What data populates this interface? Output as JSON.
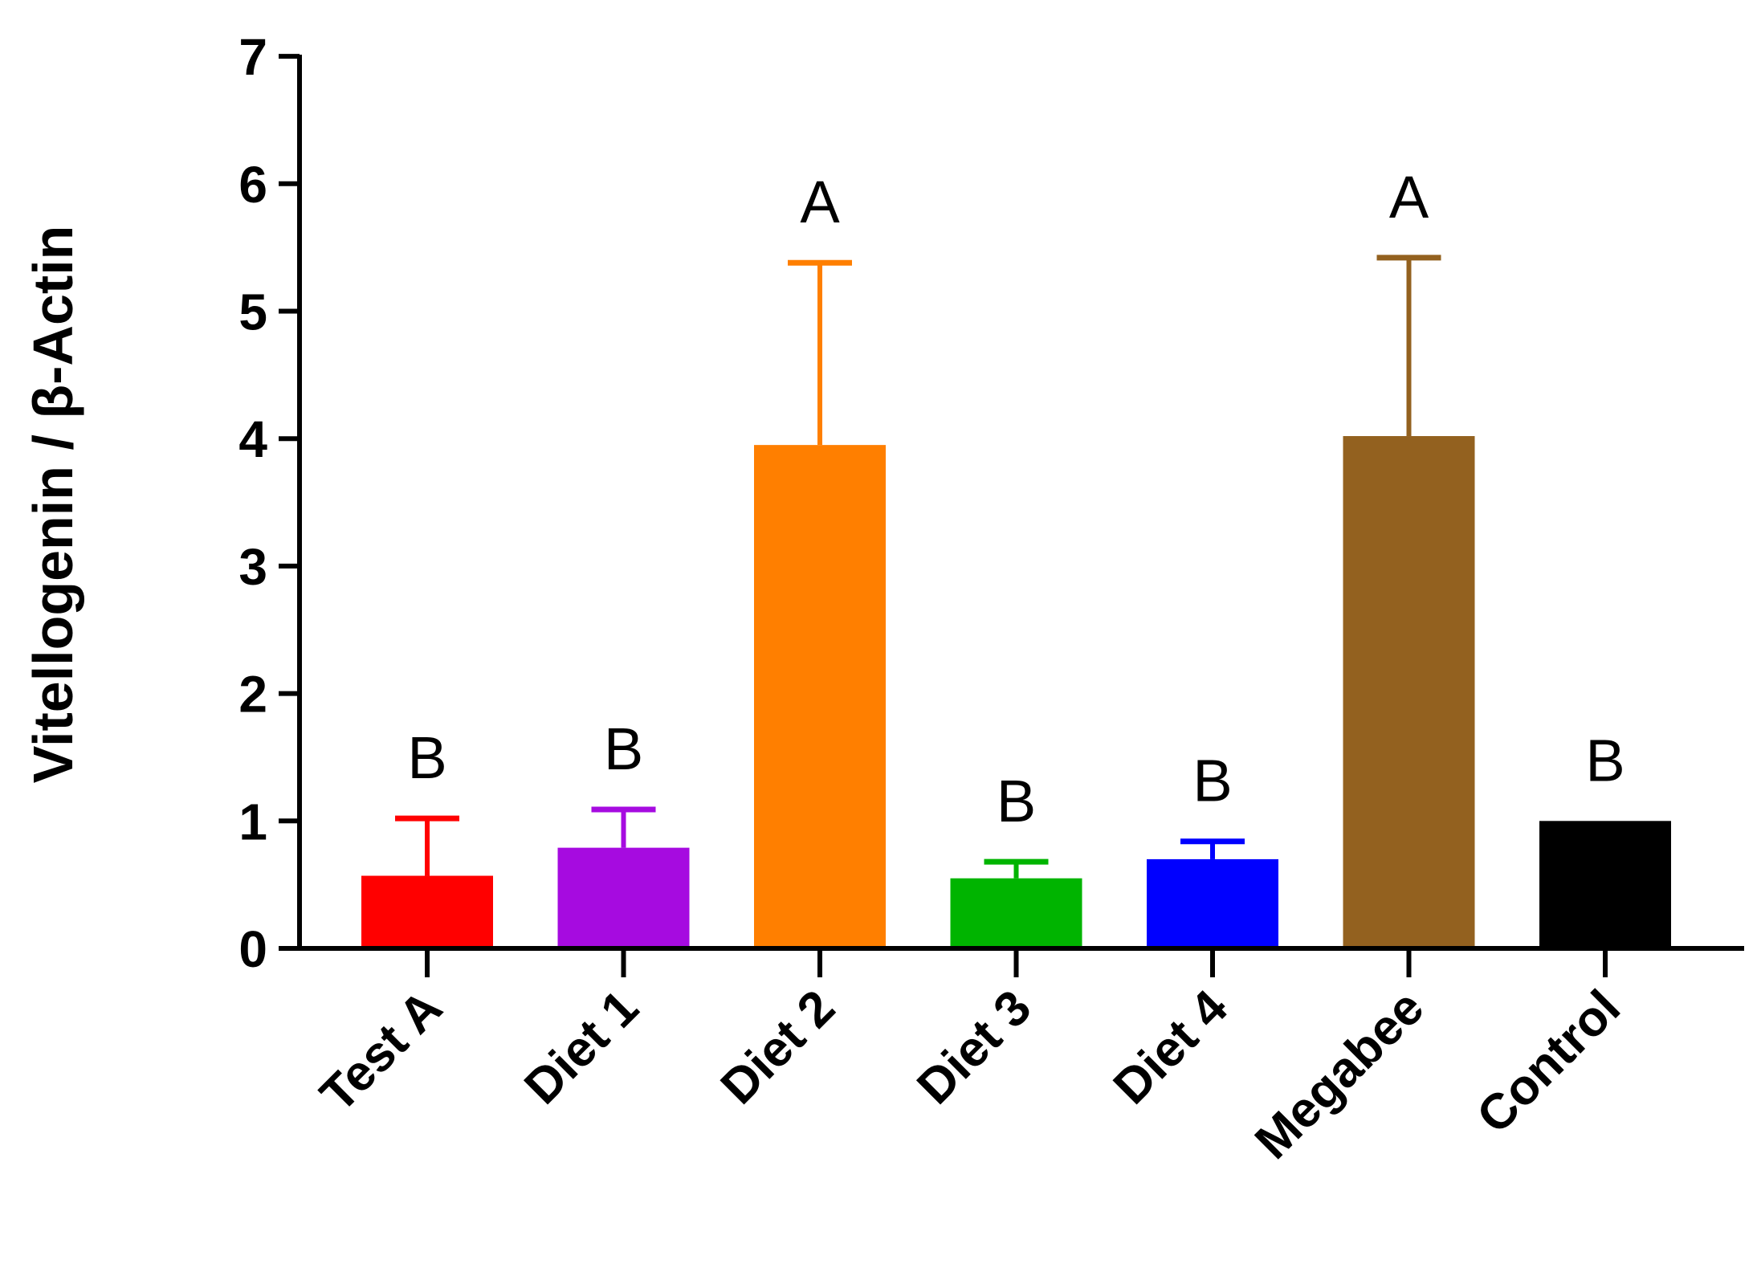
{
  "chart_data": {
    "type": "bar",
    "title": "",
    "xlabel": "",
    "ylabel": "Vitellogenin / β-Actin",
    "ylim": [
      0,
      7
    ],
    "yticks": [
      0,
      1,
      2,
      3,
      4,
      5,
      6,
      7
    ],
    "grid": false,
    "categories": [
      "Test A",
      "Diet 1",
      "Diet 2",
      "Diet 3",
      "Diet 4",
      "Megabee",
      "Control"
    ],
    "values": [
      0.57,
      0.79,
      3.95,
      0.55,
      0.7,
      4.02,
      1.0
    ],
    "error_upper": [
      1.02,
      1.09,
      5.38,
      0.68,
      0.84,
      5.42,
      null
    ],
    "significance": [
      "B",
      "B",
      "A",
      "B",
      "B",
      "A",
      "B"
    ],
    "colors": [
      "#ff0000",
      "#a60be0",
      "#ff7f00",
      "#00b400",
      "#0000ff",
      "#93611f",
      "#000000"
    ]
  }
}
